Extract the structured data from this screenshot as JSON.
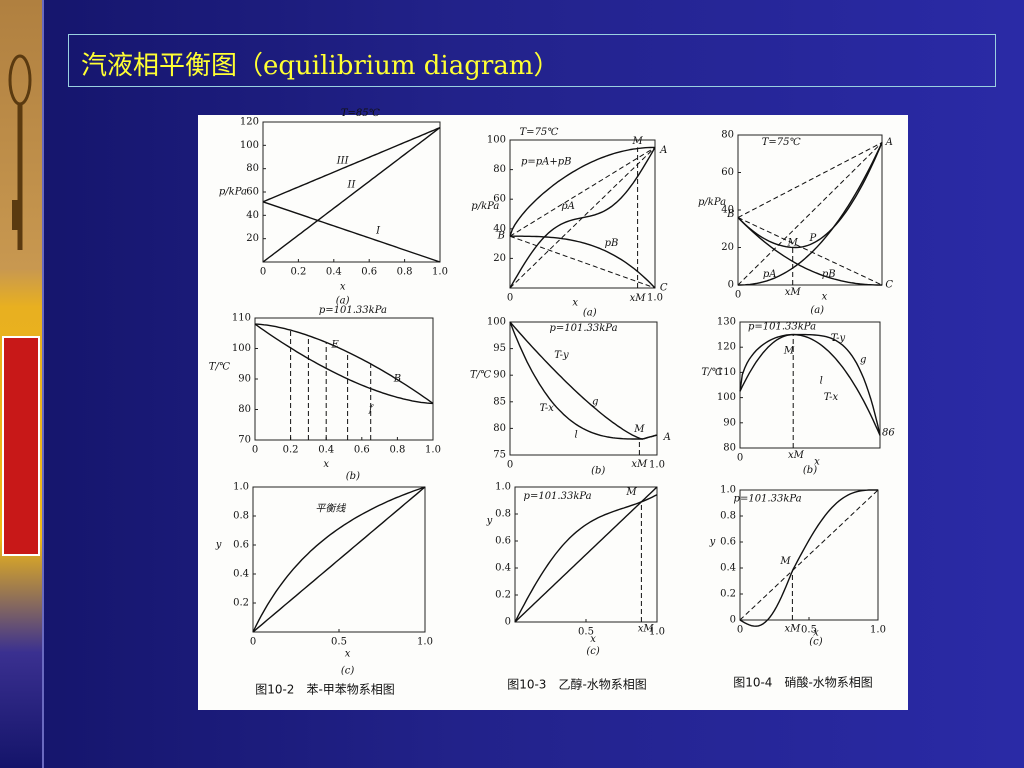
{
  "header": {
    "title": "汽液相平衡图（equilibrium diagram）"
  },
  "figures": [
    {
      "caption": "图10-2　苯-甲苯物系相图",
      "panels": [
        {
          "yticks": [
            "120",
            "100",
            "80",
            "60",
            "40",
            "20"
          ],
          "xticks": [
            "0",
            "0.2",
            "0.4",
            "0.6",
            "0.8",
            "1.0"
          ],
          "notes": [
            "T=85℃",
            "III",
            "II",
            "I",
            "p/kPa",
            "x",
            "(a)"
          ]
        },
        {
          "yticks": [
            "110",
            "100",
            "90",
            "80",
            "70"
          ],
          "xticks": [
            "0",
            "0.2",
            "0.4",
            "0.6",
            "0.8",
            "1.0"
          ],
          "notes": [
            "p=101.33kPa",
            "T/℃",
            "E",
            "B",
            "f",
            "x",
            "(b)"
          ]
        },
        {
          "yticks": [
            "1.0",
            "0.8",
            "0.6",
            "0.4",
            "0.2"
          ],
          "xticks": [
            "0",
            "0.5",
            "1.0"
          ],
          "notes": [
            "平衡线",
            "y",
            "x",
            "(c)"
          ]
        }
      ]
    },
    {
      "caption": "图10-3　乙醇-水物系相图",
      "panels": [
        {
          "yticks": [
            "100",
            "80",
            "60",
            "40",
            "20"
          ],
          "xticks": [
            "0",
            "1.0"
          ],
          "notes": [
            "T=75℃",
            "p=pA+pB",
            "M",
            "A",
            "B",
            "C",
            "pA",
            "pB",
            "xM",
            "x",
            "p/kPa",
            "(a)"
          ]
        },
        {
          "yticks": [
            "100",
            "95",
            "90",
            "85",
            "80",
            "75"
          ],
          "xticks": [
            "0",
            "1.0"
          ],
          "notes": [
            "p=101.33kPa",
            "T-y",
            "T-x",
            "g",
            "l",
            "M",
            "A",
            "xM",
            "T/℃",
            "(b)"
          ]
        },
        {
          "yticks": [
            "1.0",
            "0.8",
            "0.6",
            "0.4",
            "0.2",
            "0"
          ],
          "xticks": [
            "0.5",
            "1.0"
          ],
          "notes": [
            "p=101.33kPa",
            "M",
            "xM",
            "y",
            "x",
            "(c)"
          ]
        }
      ]
    },
    {
      "caption": "图10-4　硝酸-水物系相图",
      "panels": [
        {
          "yticks": [
            "80",
            "60",
            "40",
            "20",
            "0"
          ],
          "xticks": [
            "0"
          ],
          "notes": [
            "T=75℃",
            "A",
            "B",
            "C",
            "P",
            "M",
            "pA",
            "pB",
            "xM",
            "x",
            "p/kPa",
            "(a)"
          ]
        },
        {
          "yticks": [
            "130",
            "120",
            "110",
            "100",
            "90",
            "80"
          ],
          "xticks": [
            "0"
          ],
          "notes": [
            "p=101.33kPa",
            "M",
            "T-y",
            "T-x",
            "g",
            "l",
            "86",
            "xM",
            "x",
            "T/℃",
            "(b)"
          ]
        },
        {
          "yticks": [
            "1.0",
            "0.8",
            "0.6",
            "0.4",
            "0.2",
            "0"
          ],
          "xticks": [
            "0",
            "0.5",
            "1.0"
          ],
          "notes": [
            "p=101.33kPa",
            "M",
            "xM",
            "y",
            "x",
            "(c)"
          ]
        }
      ]
    }
  ]
}
